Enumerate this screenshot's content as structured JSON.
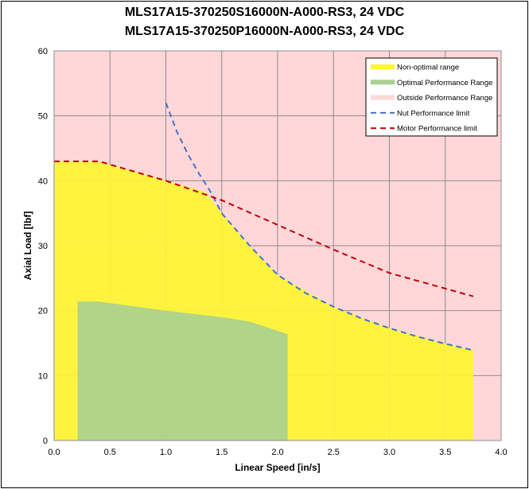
{
  "chart_data": {
    "type": "area",
    "title": [
      "MLS17A15-370250S16000N-A000-RS3, 24 VDC",
      "MLS17A15-370250P16000N-A000-RS3, 24 VDC"
    ],
    "xlabel": "Linear Speed [in/s]",
    "ylabel": "Axial Load [lbf]",
    "xlim": [
      0,
      4.0
    ],
    "ylim": [
      0,
      60
    ],
    "xticks": [
      "0.0",
      "0.5",
      "1.0",
      "1.5",
      "2.0",
      "2.5",
      "3.0",
      "3.5",
      "4.0"
    ],
    "yticks": [
      "0",
      "10",
      "20",
      "30",
      "40",
      "50",
      "60"
    ],
    "grid": true,
    "legend_position": "top-right",
    "series": [
      {
        "name": "Non-optimal range",
        "kind": "area",
        "color": "#fff533",
        "x": [
          0,
          0.4,
          1.0,
          1.35,
          1.5,
          1.75,
          2.0,
          2.5,
          3.0,
          3.5,
          3.75
        ],
        "y": [
          43,
          43,
          40,
          38.3,
          35,
          30,
          25.5,
          20.6,
          17.3,
          14.9,
          13.9
        ]
      },
      {
        "name": "Optimal Performance Range",
        "kind": "area",
        "color": "#a9d18e",
        "x": [
          0.21,
          0.4,
          1.0,
          1.5,
          1.75,
          2.09
        ],
        "y": [
          21.4,
          21.4,
          20,
          19,
          18.3,
          16.4
        ]
      },
      {
        "name": "Outside Performance Range",
        "kind": "area",
        "color": "#ffd7d9"
      },
      {
        "name": "Nut Performance limit",
        "kind": "dashed-line",
        "color": "#4472c4",
        "x": [
          1.0,
          1.1,
          1.2,
          1.3,
          1.4,
          1.5,
          1.75,
          2.0,
          2.25,
          2.5,
          2.75,
          3.0,
          3.25,
          3.5,
          3.75
        ],
        "y": [
          52,
          47.5,
          44,
          41,
          38.3,
          35,
          30,
          25.5,
          22.7,
          20.6,
          18.8,
          17.3,
          16,
          14.9,
          13.9
        ]
      },
      {
        "name": "Motor Performance limit",
        "kind": "dashed-line",
        "color": "#c00000",
        "x": [
          0,
          0.4,
          1.0,
          1.5,
          2.0,
          2.5,
          3.0,
          3.5,
          3.75
        ],
        "y": [
          43,
          43,
          40,
          37,
          33.2,
          29.4,
          25.8,
          23.4,
          22.2
        ]
      }
    ]
  }
}
